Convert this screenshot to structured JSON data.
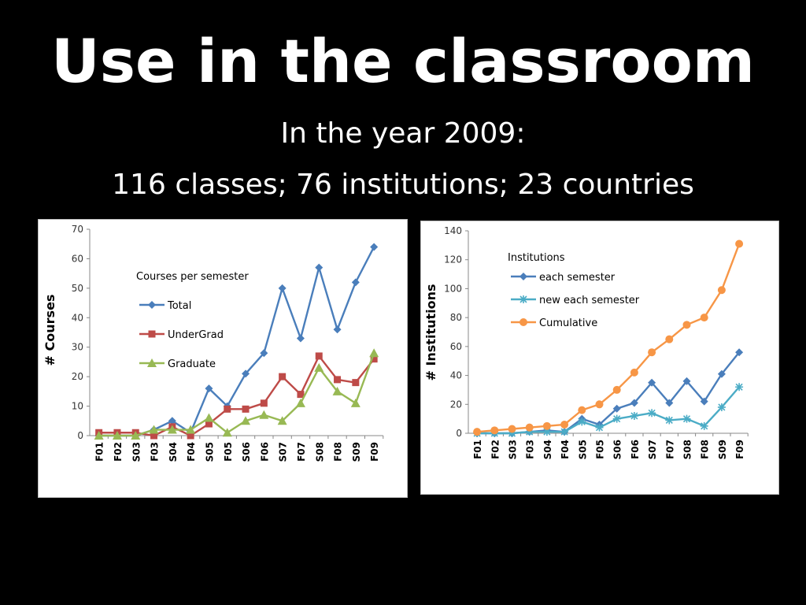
{
  "slide": {
    "title": "Use in the classroom",
    "subtitle_line1": "In the year 2009:",
    "subtitle_line2": "116 classes; 76 institutions; 23 countries"
  },
  "colors": {
    "background": "#000000",
    "text": "#ffffff",
    "blue": "#4a7ebb",
    "red": "#be4b48",
    "green": "#98b954",
    "teal": "#4bacc6",
    "orange": "#f79646"
  },
  "chart_data": [
    {
      "type": "line",
      "title": "",
      "xlabel": "",
      "ylabel": "# Courses",
      "legend_title": "Courses per semester",
      "legend_position": "top-left",
      "grid": false,
      "ylim": [
        0,
        70
      ],
      "yticks": [
        0,
        10,
        20,
        30,
        40,
        50,
        60,
        70
      ],
      "categories": [
        "F01",
        "F02",
        "S03",
        "F03",
        "S04",
        "F04",
        "S05",
        "F05",
        "S06",
        "F06",
        "S07",
        "F07",
        "S08",
        "F08",
        "S09",
        "F09"
      ],
      "series": [
        {
          "name": "Total",
          "color": "#4a7ebb",
          "marker": "diamond",
          "values": [
            0,
            0,
            0,
            2,
            5,
            1,
            16,
            10,
            21,
            28,
            50,
            33,
            57,
            36,
            52,
            64
          ]
        },
        {
          "name": "UnderGrad",
          "color": "#be4b48",
          "marker": "square",
          "values": [
            1,
            1,
            1,
            0,
            3,
            0,
            4,
            9,
            9,
            11,
            20,
            14,
            27,
            19,
            18,
            26
          ]
        },
        {
          "name": "Graduate",
          "color": "#98b954",
          "marker": "triangle",
          "values": [
            0,
            0,
            0,
            2,
            2,
            2,
            6,
            1,
            5,
            7,
            5,
            11,
            23,
            15,
            11,
            28
          ]
        }
      ]
    },
    {
      "type": "line",
      "title": "",
      "xlabel": "",
      "ylabel": "# Institutions",
      "legend_title": "Institutions",
      "legend_position": "top-left",
      "grid": false,
      "ylim": [
        0,
        140
      ],
      "yticks": [
        0,
        20,
        40,
        60,
        80,
        100,
        120,
        140
      ],
      "categories": [
        "F01",
        "F02",
        "S03",
        "F03",
        "S04",
        "F04",
        "S05",
        "F05",
        "S06",
        "F06",
        "S07",
        "F07",
        "S08",
        "F08",
        "S09",
        "F09"
      ],
      "series": [
        {
          "name": "each semester",
          "color": "#4a7ebb",
          "marker": "diamond",
          "values": [
            0,
            0,
            0,
            1,
            2,
            1,
            10,
            6,
            17,
            21,
            35,
            21,
            36,
            22,
            41,
            56
          ]
        },
        {
          "name": "new each semester",
          "color": "#4bacc6",
          "marker": "star",
          "values": [
            0,
            0,
            0,
            1,
            1,
            1,
            8,
            4,
            10,
            12,
            14,
            9,
            10,
            5,
            18,
            32
          ]
        },
        {
          "name": "Cumulative",
          "color": "#f79646",
          "marker": "circle",
          "values": [
            1,
            2,
            3,
            4,
            5,
            6,
            16,
            20,
            30,
            42,
            56,
            65,
            75,
            80,
            99,
            131
          ]
        }
      ]
    }
  ]
}
